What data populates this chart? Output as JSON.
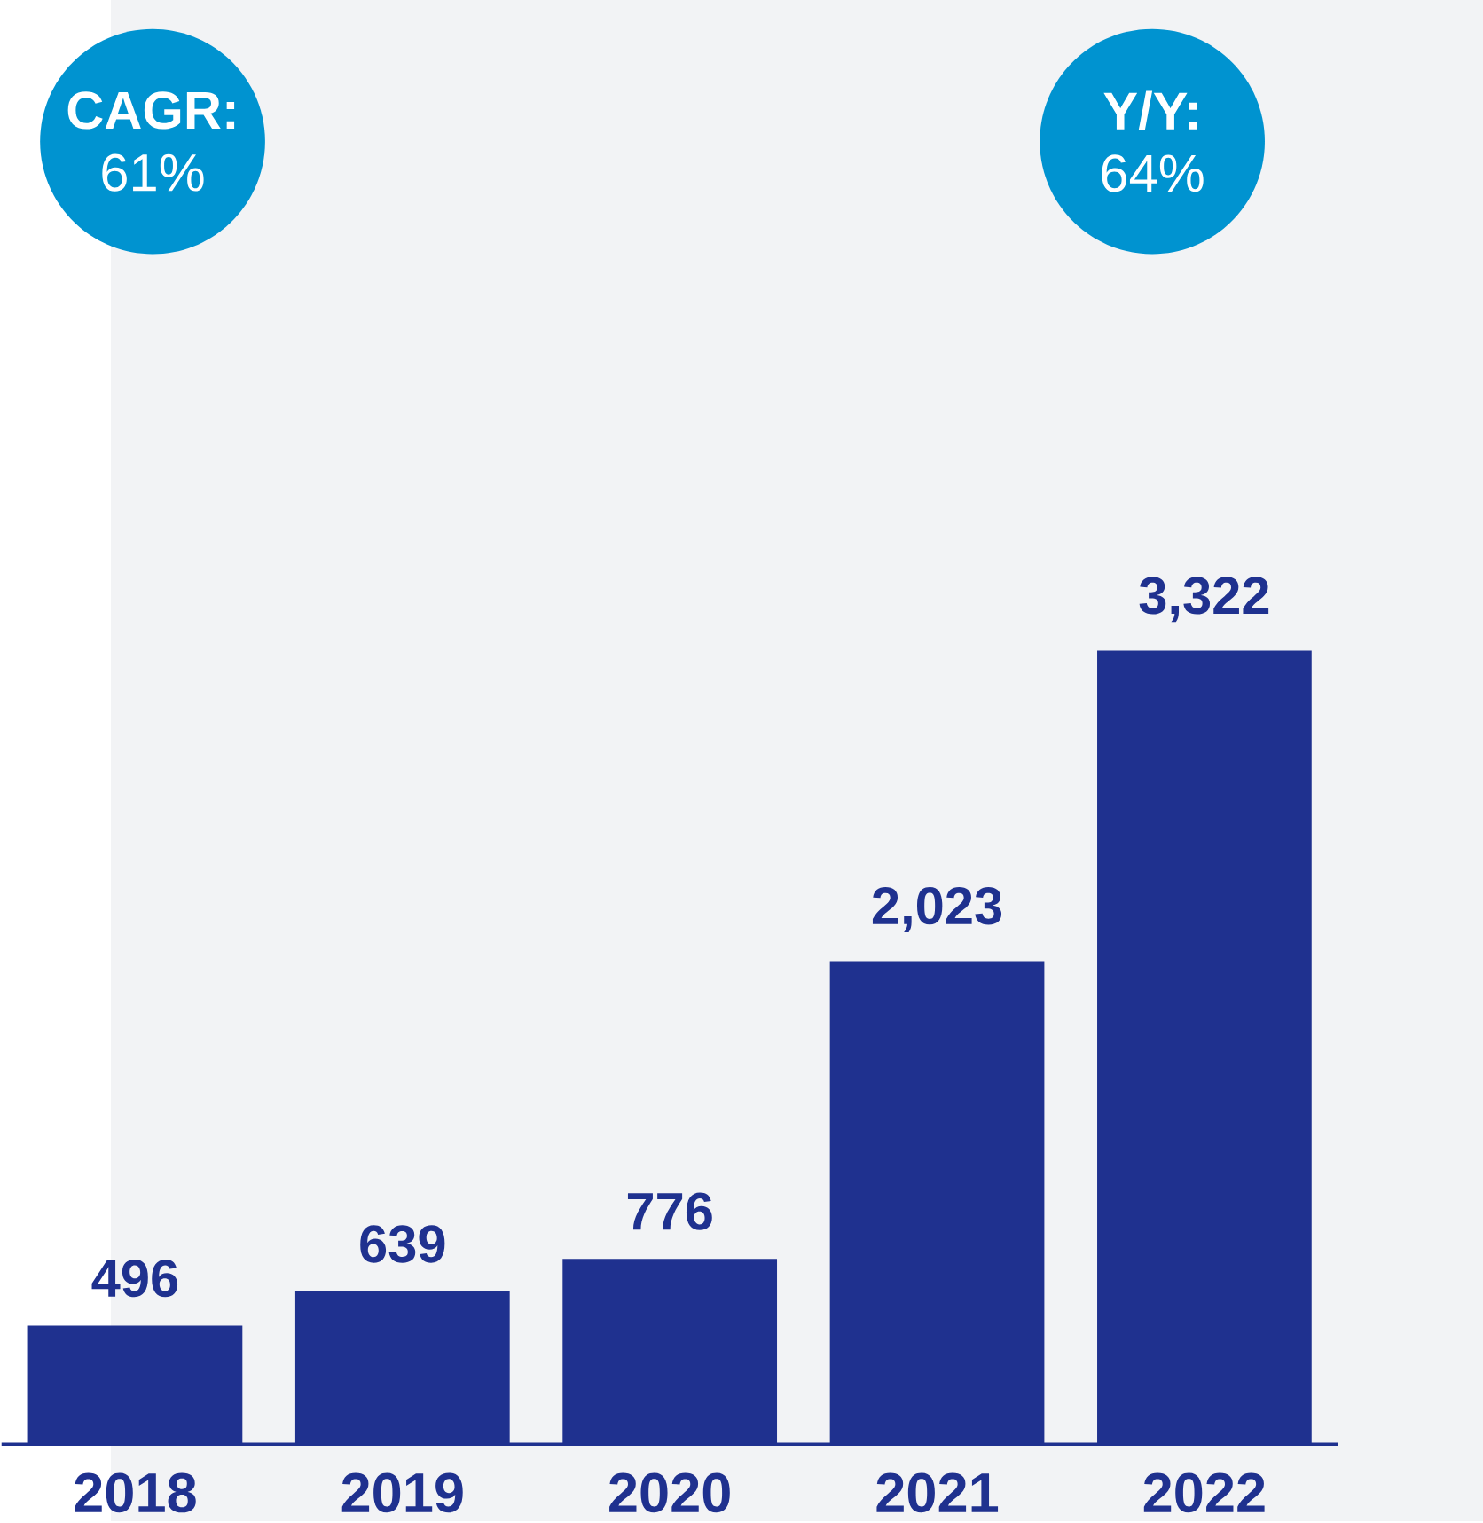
{
  "chart_data": {
    "type": "bar",
    "categories": [
      "2018",
      "2019",
      "2020",
      "2021",
      "2022"
    ],
    "values": [
      496,
      639,
      776,
      2023,
      3322
    ],
    "value_labels": [
      "496",
      "639",
      "776",
      "2,023",
      "3,322"
    ],
    "color": "#1f318f",
    "annotations": [
      "**CAGR:** 61%",
      "**Y/Y:** 64%"
    ]
  }
}
